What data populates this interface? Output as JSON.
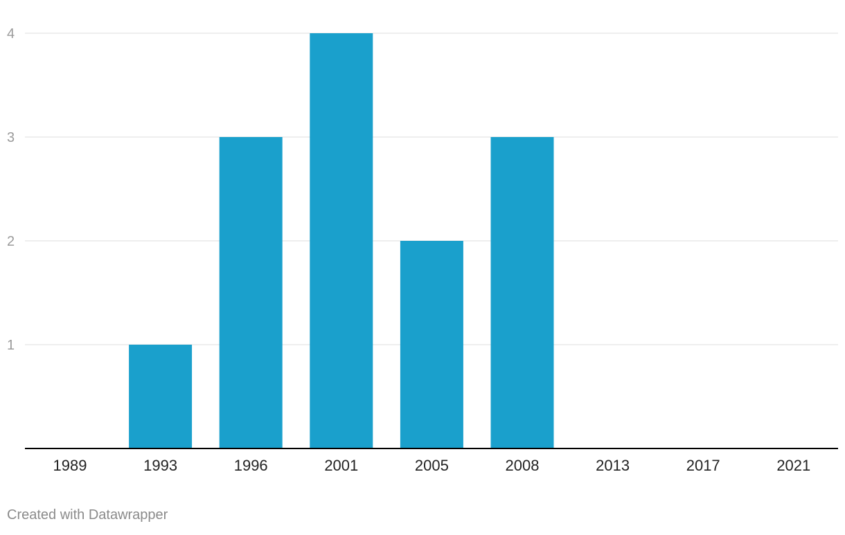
{
  "chart_data": {
    "type": "bar",
    "categories": [
      "1989",
      "1993",
      "1996",
      "2001",
      "2005",
      "2008",
      "2013",
      "2017",
      "2021"
    ],
    "values": [
      0,
      1,
      3,
      4,
      2,
      3,
      0,
      0,
      0
    ],
    "title": "",
    "xlabel": "",
    "ylabel": "",
    "ylim": [
      0,
      4
    ],
    "yticks": [
      1,
      2,
      3,
      4
    ],
    "grid": true,
    "bar_color": "#1aa0cc"
  },
  "footer": {
    "credit": "Created with Datawrapper"
  },
  "colors": {
    "gridline": "#e3e3e3",
    "baseline": "#000000",
    "tick_label_y": "#9a9a9a",
    "tick_label_x": "#222222",
    "credit": "#8a8a8a"
  }
}
